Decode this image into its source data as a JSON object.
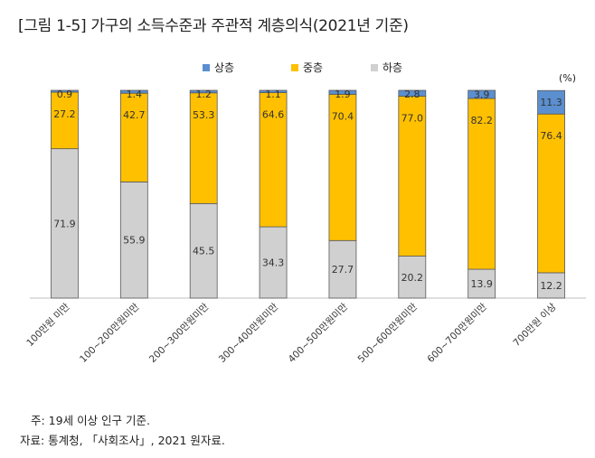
{
  "title": "[그림 1-5] 가구의 소득수준과 주관적 계층의식(2021년 기준)",
  "unit": "(%)",
  "notes": {
    "note": "주: 19세 이상 인구 기준.",
    "source": "자료: 통계청, 「사회조사」, 2021 원자료."
  },
  "colors": {
    "upper": "#5b8fcf",
    "middle": "#ffc000",
    "lower": "#d0d0d0"
  },
  "chart_data": {
    "type": "bar",
    "stacked": true,
    "orientation": "vertical",
    "unit": "(%)",
    "categories": [
      "100만원 미만",
      "100~200만원미만",
      "200~300만원미만",
      "300~400만원미만",
      "400~500만원미만",
      "500~600만원미만",
      "600~700만원미만",
      "700만원 이상"
    ],
    "series": [
      {
        "name": "하층",
        "color": "#d0d0d0",
        "values": [
          71.9,
          55.9,
          45.5,
          34.3,
          27.7,
          20.2,
          13.9,
          12.2
        ]
      },
      {
        "name": "중층",
        "color": "#ffc000",
        "values": [
          27.2,
          42.7,
          53.3,
          64.6,
          70.4,
          77.0,
          82.2,
          76.4
        ]
      },
      {
        "name": "상층",
        "color": "#5b8fcf",
        "values": [
          0.9,
          1.4,
          1.2,
          1.1,
          1.9,
          2.8,
          3.9,
          11.3
        ]
      }
    ],
    "legend_order": [
      "상층",
      "중층",
      "하층"
    ],
    "legend_position": "top-center",
    "ylim": [
      0,
      100
    ],
    "grid": false
  }
}
